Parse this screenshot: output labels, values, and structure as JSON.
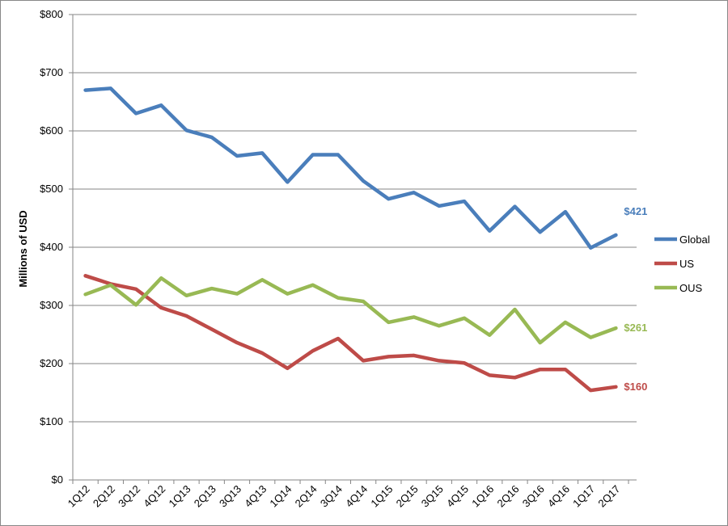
{
  "chart_data": {
    "type": "line",
    "title": "",
    "xlabel": "",
    "ylabel": "Millions of USD",
    "ylim": [
      0,
      800
    ],
    "yticks": [
      0,
      100,
      200,
      300,
      400,
      500,
      600,
      700,
      800
    ],
    "ytick_labels": [
      "$0",
      "$100",
      "$200",
      "$300",
      "$400",
      "$500",
      "$600",
      "$700",
      "$800"
    ],
    "grid": true,
    "legend_position": "right",
    "categories": [
      "1Q12",
      "2Q12",
      "3Q12",
      "4Q12",
      "1Q13",
      "2Q13",
      "3Q13",
      "4Q13",
      "1Q14",
      "2Q14",
      "3Q14",
      "4Q14",
      "1Q15",
      "2Q15",
      "3Q15",
      "4Q15",
      "1Q16",
      "2Q16",
      "3Q16",
      "4Q16",
      "1Q17",
      "2Q17"
    ],
    "series": [
      {
        "name": "Global",
        "color": "#4a7ebb",
        "values": [
          670,
          673,
          630,
          644,
          601,
          589,
          557,
          562,
          512,
          559,
          559,
          514,
          483,
          494,
          471,
          479,
          428,
          470,
          426,
          461,
          399,
          421
        ],
        "end_label": "$421"
      },
      {
        "name": "US",
        "color": "#be4b48",
        "values": [
          351,
          337,
          328,
          296,
          282,
          259,
          236,
          218,
          192,
          222,
          243,
          205,
          212,
          214,
          205,
          201,
          180,
          176,
          190,
          190,
          154,
          160
        ],
        "end_label": "$160"
      },
      {
        "name": "OUS",
        "color": "#98b954",
        "values": [
          319,
          335,
          301,
          347,
          317,
          329,
          320,
          344,
          320,
          335,
          313,
          307,
          271,
          280,
          265,
          278,
          249,
          293,
          236,
          271,
          245,
          261
        ],
        "end_label": "$261"
      }
    ]
  }
}
